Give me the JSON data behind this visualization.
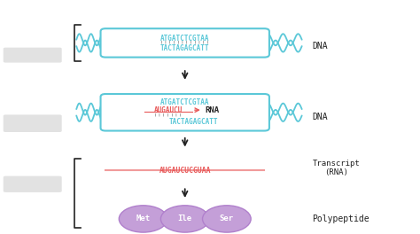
{
  "bg_color": "#ffffff",
  "cyan": "#5bc8d8",
  "red": "#e85858",
  "black": "#222222",
  "purple": "#c49fd8",
  "gray_bar": "#dddddd",
  "dna_top_seq": "ATGATCTCGTAA",
  "dna_bot_seq": "TACTAGAGCATT",
  "rna_seq": "AUGAUCU",
  "mid_top_seq": "ATGATCTCGTAA",
  "mid_bot_seq": "TACTAGAGCATT",
  "transcript_seq": "AUGAUCUCGUAA",
  "label_dna1": "DNA",
  "label_dna2": "DNA",
  "label_rna": "RNA",
  "label_transcript": "Transcript\n(RNA)",
  "label_polypeptide": "Polypeptide",
  "aa1": "Met",
  "aa2": "Ile",
  "aa3": "Ser",
  "fig_w": 4.74,
  "fig_h": 2.64,
  "dpi": 100
}
